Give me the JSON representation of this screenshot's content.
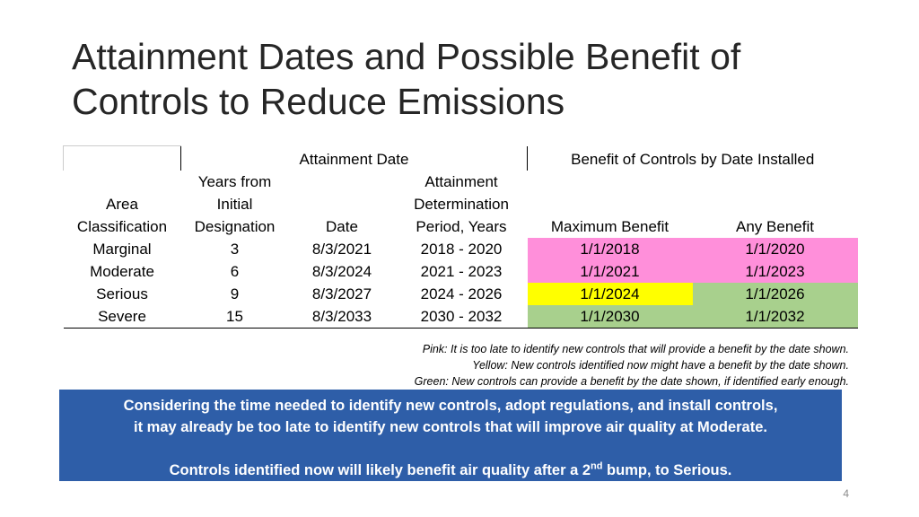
{
  "slide": {
    "title_line1": "Attainment Dates and Possible Benefit of",
    "title_line2": "Controls to Reduce Emissions",
    "page_number": "4"
  },
  "table": {
    "group_headers": {
      "attainment_date": "Attainment Date",
      "benefit": "Benefit of Controls by Date Installed"
    },
    "columns": {
      "area": [
        "Area",
        "Classification"
      ],
      "years": [
        "Years from",
        "Initial",
        "Designation"
      ],
      "date": [
        "Date"
      ],
      "period": [
        "Attainment",
        "Determination",
        "Period, Years"
      ],
      "max_benefit": [
        "Maximum Benefit"
      ],
      "any_benefit": [
        "Any Benefit"
      ]
    },
    "rows": [
      {
        "area": "Marginal",
        "years": "3",
        "date": "8/3/2021",
        "period": "2018 - 2020",
        "max_benefit": "1/1/2018",
        "max_color": "pink",
        "any_benefit": "1/1/2020",
        "any_color": "pink"
      },
      {
        "area": "Moderate",
        "years": "6",
        "date": "8/3/2024",
        "period": "2021 - 2023",
        "max_benefit": "1/1/2021",
        "max_color": "pink",
        "any_benefit": "1/1/2023",
        "any_color": "pink"
      },
      {
        "area": "Serious",
        "years": "9",
        "date": "8/3/2027",
        "period": "2024 - 2026",
        "max_benefit": "1/1/2024",
        "max_color": "yellow",
        "any_benefit": "1/1/2026",
        "any_color": "green"
      },
      {
        "area": "Severe",
        "years": "15",
        "date": "8/3/2033",
        "period": "2030 - 2032",
        "max_benefit": "1/1/2030",
        "max_color": "green",
        "any_benefit": "1/1/2032",
        "any_color": "green"
      }
    ],
    "colors": {
      "pink": "#ff8fda",
      "yellow": "#ffff00",
      "green": "#a8d08d"
    }
  },
  "legend": {
    "pink": "Pink:  It is too late to identify new controls that will provide a benefit by the date shown.",
    "yellow": "Yellow:  New controls identified now might have a benefit by the date shown.",
    "green": "Green:   New controls can provide a benefit by the date shown, if identified early enough."
  },
  "callout": {
    "line1": "Considering the time needed to identify new controls, adopt regulations, and install controls,",
    "line2": "it may already be too late to identify new controls that will improve air quality at Moderate.",
    "line3_before": "Controls identified now will likely benefit air quality after a 2",
    "line3_sup": "nd",
    "line3_after": " bump, to Serious.",
    "background": "#2e5ea8"
  }
}
